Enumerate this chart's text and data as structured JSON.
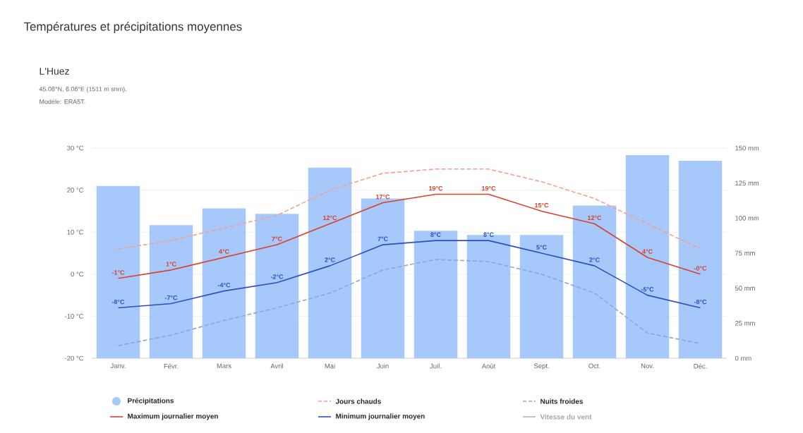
{
  "chart_data": {
    "type": "bar",
    "title": "Températures et précipitations moyennes",
    "subtitle": "L'Huez",
    "annotations": [
      "45.08°N, 6.06°E (1511 m snm).",
      "Modèle: ERA5T."
    ],
    "categories": [
      "Janv.",
      "Févr.",
      "Mars",
      "Avril",
      "Mai",
      "Juin",
      "Juil.",
      "Août",
      "Sept.",
      "Oct.",
      "Nov.",
      "Déc."
    ],
    "series": [
      {
        "name": "Précipitations",
        "axis": "y2",
        "color": "#a6c8fa",
        "values": [
          123,
          95,
          107,
          103,
          136,
          114,
          91,
          88,
          88,
          109,
          145,
          141
        ]
      },
      {
        "name": "Jours chauds",
        "type": "line",
        "line_style": "dashed",
        "color": "#f4a090",
        "values": [
          6,
          8,
          11,
          14,
          20,
          24,
          25,
          25,
          22,
          18,
          12,
          6
        ]
      },
      {
        "name": "Nuits froides",
        "type": "line",
        "line_style": "dashed",
        "color": "#8fa6d0",
        "values": [
          -17,
          -14.5,
          -11,
          -8,
          -4.5,
          1,
          3.5,
          3,
          0,
          -4.5,
          -14,
          -16.5
        ]
      },
      {
        "name": "Maximum journalier moyen",
        "type": "line",
        "line_style": "solid",
        "color": "#d9412a",
        "values": [
          -1,
          1,
          4,
          7,
          12,
          17,
          19,
          19,
          15,
          12,
          4,
          0
        ],
        "value_labels": [
          "-1°C",
          "1°C",
          "4°C",
          "7°C",
          "12°C",
          "17°C",
          "19°C",
          "19°C",
          "15°C",
          "12°C",
          "4°C",
          "-0°C"
        ]
      },
      {
        "name": "Minimum journalier moyen",
        "type": "line",
        "line_style": "solid",
        "color": "#2b4fc0",
        "values": [
          -8,
          -7,
          -4,
          -2,
          2,
          7,
          8,
          8,
          5,
          2,
          -5,
          -8
        ],
        "value_labels": [
          "-8°C",
          "-7°C",
          "-4°C",
          "-2°C",
          "2°C",
          "7°C",
          "8°C",
          "8°C",
          "5°C",
          "2°C",
          "-5°C",
          "-8°C"
        ]
      },
      {
        "name": "Vitesse du vent",
        "type": "line",
        "line_style": "solid",
        "color": "#b4b4b4",
        "values": [
          null,
          null,
          null,
          null,
          null,
          null,
          null,
          null,
          null,
          null,
          null,
          null
        ]
      }
    ],
    "ylim": [
      -20,
      30
    ],
    "yticks": [
      {
        "value": -20,
        "label": "-20 °C"
      },
      {
        "value": -10,
        "label": "-10 °C"
      },
      {
        "value": 0,
        "label": "0 °C"
      },
      {
        "value": 10,
        "label": "10 °C"
      },
      {
        "value": 20,
        "label": "20 °C"
      },
      {
        "value": 30,
        "label": "30 °C"
      }
    ],
    "y2lim": [
      0,
      150
    ],
    "y2ticks": [
      {
        "value": 0,
        "label": "0 mm"
      },
      {
        "value": 25,
        "label": "25 mm"
      },
      {
        "value": 50,
        "label": "50 mm"
      },
      {
        "value": 75,
        "label": "75 mm"
      },
      {
        "value": 100,
        "label": "100 mm"
      },
      {
        "value": 125,
        "label": "125 mm"
      },
      {
        "value": 150,
        "label": "150 mm"
      }
    ],
    "grid": "y",
    "legend": "bottom"
  }
}
